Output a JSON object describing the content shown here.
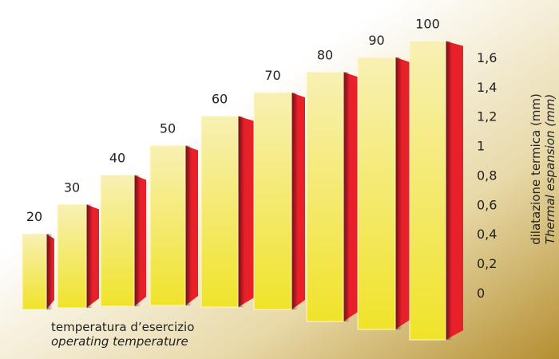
{
  "chart_data": {
    "type": "bar",
    "categories": [
      "20",
      "30",
      "40",
      "50",
      "60",
      "70",
      "80",
      "90",
      "100"
    ],
    "values": [
      0.4,
      0.6,
      0.8,
      1.0,
      1.2,
      1.36,
      1.5,
      1.6,
      1.71
    ],
    "color": "#f2e43a",
    "side_color": "#e8202a",
    "ylim": [
      0,
      1.8
    ],
    "yticks": [
      0,
      {
        "value": 0.2,
        "label": "0,2"
      },
      {
        "value": 0.4,
        "label": "0,4"
      },
      {
        "value": 0.6,
        "label": "0,6"
      },
      {
        "value": 0.8,
        "label": "0,8"
      },
      1,
      {
        "value": 1.2,
        "label": "1,2"
      },
      {
        "value": 1.4,
        "label": "1,4"
      },
      {
        "value": 1.6,
        "label": "1,6"
      }
    ],
    "y_label": [
      "dilatazione termica (mm)",
      "Thermal espansion (mm)"
    ],
    "x_label": [
      "temperatura d’esercizio",
      "operating temperature"
    ]
  }
}
